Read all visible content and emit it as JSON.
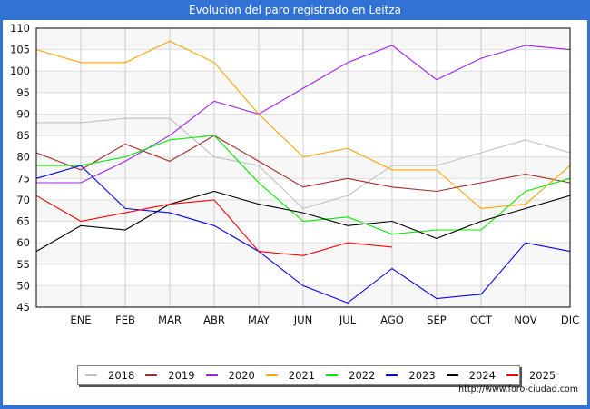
{
  "title": "Evolucion del paro registrado en Leitza",
  "source": "http://www.foro-ciudad.com",
  "chart_data": {
    "type": "line",
    "title": "Evolucion del paro registrado en Leitza",
    "xlabel": "",
    "ylabel": "",
    "categories": [
      "",
      "ENE",
      "FEB",
      "MAR",
      "ABR",
      "MAY",
      "JUN",
      "JUL",
      "AGO",
      "SEP",
      "OCT",
      "NOV",
      "DIC"
    ],
    "ylim": [
      45,
      110
    ],
    "yticks": [
      45,
      50,
      55,
      60,
      65,
      70,
      75,
      80,
      85,
      90,
      95,
      100,
      105,
      110
    ],
    "grid": true,
    "legend_position": "bottom",
    "series": [
      {
        "name": "2018",
        "color": "#c0c0c0",
        "values": [
          88,
          88,
          89,
          89,
          80,
          78,
          68,
          71,
          78,
          78,
          81,
          84,
          81
        ]
      },
      {
        "name": "2019",
        "color": "#a52a2a",
        "values": [
          81,
          77,
          83,
          79,
          85,
          79,
          73,
          75,
          73,
          72,
          74,
          76,
          74
        ]
      },
      {
        "name": "2020",
        "color": "#a020f0",
        "values": [
          74,
          74,
          79,
          85,
          93,
          90,
          96,
          102,
          106,
          98,
          103,
          106,
          105
        ]
      },
      {
        "name": "2021",
        "color": "#ffa500",
        "values": [
          105,
          102,
          102,
          107,
          102,
          90,
          80,
          82,
          77,
          77,
          68,
          69,
          78
        ]
      },
      {
        "name": "2022",
        "color": "#00ee00",
        "values": [
          78,
          78,
          80,
          84,
          85,
          74,
          65,
          66,
          62,
          63,
          63,
          72,
          75
        ]
      },
      {
        "name": "2023",
        "color": "#0000ee",
        "values": [
          75,
          78,
          68,
          67,
          64,
          58,
          50,
          46,
          54,
          47,
          48,
          60,
          58
        ]
      },
      {
        "name": "2024",
        "color": "#000000",
        "values": [
          58,
          64,
          63,
          69,
          72,
          69,
          67,
          64,
          65,
          61,
          65,
          68,
          71
        ]
      },
      {
        "name": "2025",
        "color": "#ff0000",
        "values": [
          71,
          65,
          67,
          69,
          70,
          58,
          57,
          60,
          59
        ]
      }
    ]
  }
}
